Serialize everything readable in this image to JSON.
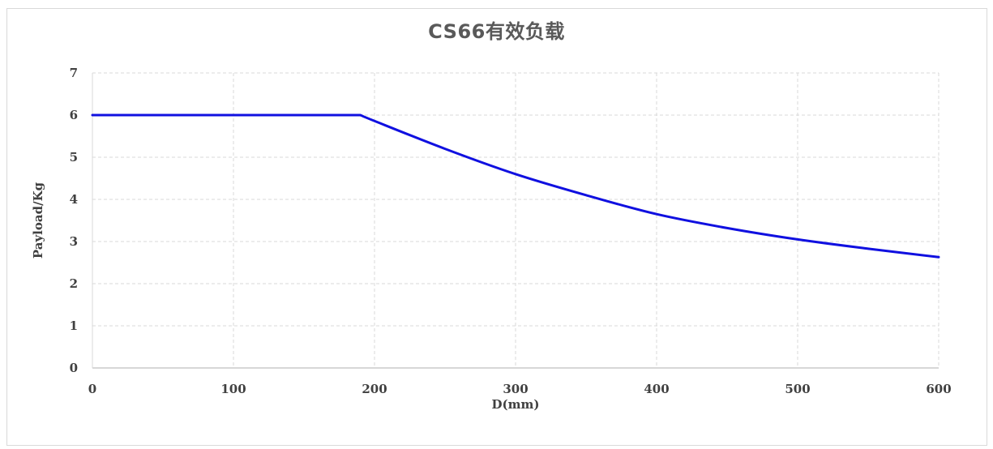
{
  "chart_data": {
    "type": "line",
    "title": "CS66有效负载",
    "xlabel": "D(mm)",
    "ylabel": "Payload/Kg",
    "xlim": [
      0,
      600
    ],
    "ylim": [
      0,
      7
    ],
    "x_ticks": [
      0,
      100,
      200,
      300,
      400,
      500,
      600
    ],
    "y_ticks": [
      0,
      1,
      2,
      3,
      4,
      5,
      6,
      7
    ],
    "grid": true,
    "legend": "none",
    "series": [
      {
        "color": "#1010e0",
        "points": [
          {
            "x": 0,
            "y": 6.0
          },
          {
            "x": 50,
            "y": 6.0
          },
          {
            "x": 100,
            "y": 6.0
          },
          {
            "x": 150,
            "y": 6.0
          },
          {
            "x": 190,
            "y": 6.0
          },
          {
            "x": 200,
            "y": 5.86
          },
          {
            "x": 250,
            "y": 5.2
          },
          {
            "x": 300,
            "y": 4.6
          },
          {
            "x": 350,
            "y": 4.1
          },
          {
            "x": 400,
            "y": 3.65
          },
          {
            "x": 450,
            "y": 3.32
          },
          {
            "x": 500,
            "y": 3.05
          },
          {
            "x": 550,
            "y": 2.83
          },
          {
            "x": 600,
            "y": 2.63
          }
        ]
      }
    ]
  }
}
